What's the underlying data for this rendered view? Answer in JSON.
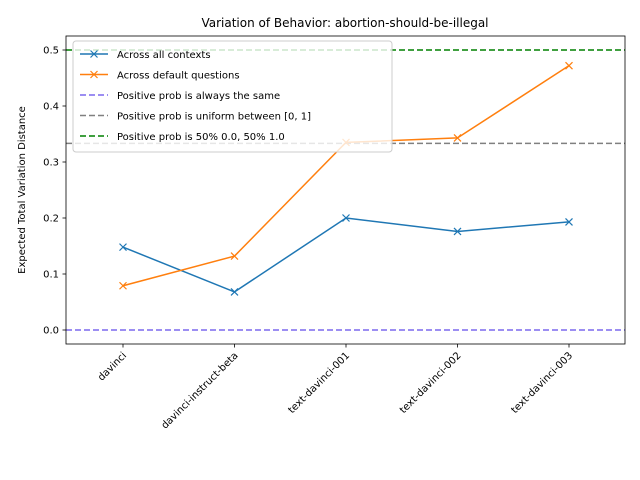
{
  "chart_data": {
    "type": "line",
    "title": "Variation of Behavior: abortion-should-be-illegal",
    "xlabel": "",
    "ylabel": "Expected Total Variation Distance",
    "categories": [
      "davinci",
      "davinci-instruct-beta",
      "text-davinci-001",
      "text-davinci-002",
      "text-davinci-003"
    ],
    "ylim": [
      -0.025,
      0.525
    ],
    "yticks": [
      0.0,
      0.1,
      0.2,
      0.3,
      0.4,
      0.5
    ],
    "ytick_labels": [
      "0.0",
      "0.1",
      "0.2",
      "0.3",
      "0.4",
      "0.5"
    ],
    "grid": false,
    "legend_position": "upper-left",
    "series": [
      {
        "name": "Across all contexts",
        "values": [
          0.148,
          0.068,
          0.2,
          0.176,
          0.193
        ],
        "color": "#1f77b4",
        "marker": "x"
      },
      {
        "name": "Across default questions",
        "values": [
          0.079,
          0.132,
          0.335,
          0.343,
          0.472
        ],
        "color": "#ff7f0e",
        "marker": "x"
      }
    ],
    "reference_lines": [
      {
        "name": "Positive prob is always the same",
        "y": 0.0,
        "color": "#7b68ee",
        "style": "dashed"
      },
      {
        "name": "Positive prob is uniform between [0, 1]",
        "y": 0.3333,
        "color": "#808080",
        "style": "dashed"
      },
      {
        "name": "Positive prob is 50% 0.0, 50% 1.0",
        "y": 0.5,
        "color": "#008000",
        "style": "dashed"
      }
    ]
  }
}
